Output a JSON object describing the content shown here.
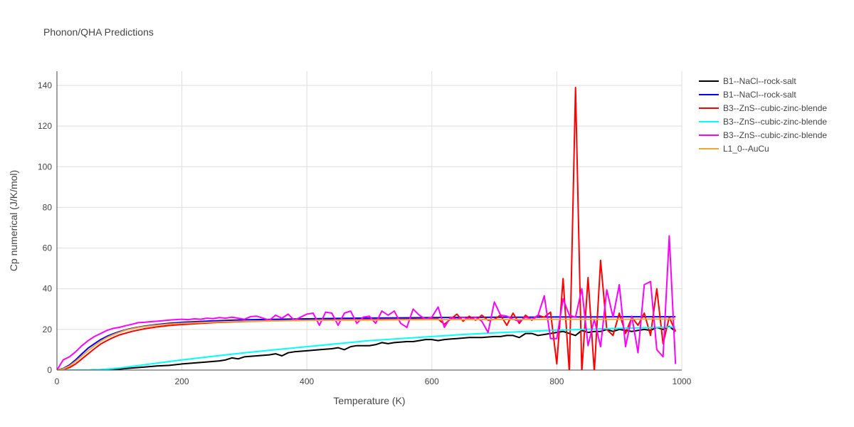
{
  "chart_data": {
    "type": "line",
    "title": "Phonon/QHA Predictions",
    "xlabel": "Temperature (K)",
    "ylabel": "Cp numerical (J/K/mol)",
    "xlim": [
      0,
      1000
    ],
    "ylim": [
      0,
      147
    ],
    "x_ticks": [
      0,
      200,
      400,
      600,
      800,
      1000
    ],
    "y_ticks": [
      0,
      20,
      40,
      60,
      80,
      100,
      120,
      140
    ],
    "grid": true,
    "legend_position": "right",
    "series": [
      {
        "name": "B1--NaCl--rock-salt",
        "color": "#000000",
        "x": [
          0,
          50,
          80,
          100,
          120,
          140,
          160,
          180,
          200,
          220,
          240,
          260,
          270,
          280,
          290,
          300,
          320,
          340,
          350,
          360,
          370,
          380,
          400,
          420,
          440,
          450,
          460,
          470,
          480,
          500,
          510,
          520,
          530,
          540,
          560,
          570,
          580,
          590,
          600,
          610,
          620,
          640,
          660,
          680,
          700,
          710,
          720,
          730,
          740,
          750,
          760,
          770,
          780,
          790,
          800,
          810,
          820,
          830,
          840,
          850,
          860,
          870,
          880,
          890,
          900,
          910,
          920,
          930,
          940,
          950,
          960,
          970,
          980,
          990
        ],
        "y": [
          0,
          0,
          0.3,
          0.5,
          1,
          1.5,
          2,
          2.3,
          3,
          3.5,
          4,
          4.5,
          5,
          6,
          5.5,
          6.5,
          7,
          7.5,
          8,
          7,
          8.5,
          9,
          9.5,
          10,
          10.5,
          11,
          10,
          11.5,
          12,
          12,
          12.5,
          13.5,
          13,
          13.5,
          14,
          14,
          14.5,
          15,
          15,
          14.5,
          15,
          15.5,
          16,
          16,
          16.5,
          16.5,
          17,
          17,
          16,
          18,
          18,
          17,
          17.5,
          18,
          18.5,
          19,
          18,
          17,
          19.5,
          18.5,
          19,
          19,
          20,
          19,
          20,
          19.5,
          19,
          19.5,
          20,
          19.5,
          21,
          20,
          21.5,
          19
        ]
      },
      {
        "name": "B1--NaCl--rock-salt",
        "color": "#0000ff",
        "x": [
          0,
          10,
          20,
          30,
          40,
          50,
          60,
          70,
          80,
          90,
          100,
          110,
          120,
          130,
          140,
          160,
          180,
          200,
          250,
          300,
          350,
          400,
          450,
          500,
          550,
          600,
          650,
          700,
          750,
          800,
          850,
          900,
          950,
          990
        ],
        "y": [
          0,
          0.8,
          2.5,
          5,
          8,
          10.8,
          13,
          15,
          16.6,
          17.8,
          18.9,
          19.8,
          20.5,
          21.1,
          21.6,
          22.4,
          23,
          23.5,
          24.2,
          24.7,
          25,
          25.2,
          25.4,
          25.6,
          25.7,
          25.8,
          25.9,
          26,
          26,
          26.1,
          26.1,
          26.2,
          26.2,
          26.2
        ]
      },
      {
        "name": "B3--ZnS--cubic-zinc-blende",
        "color": "#ff0000",
        "x": [
          0,
          10,
          20,
          30,
          40,
          50,
          60,
          70,
          80,
          90,
          100,
          120,
          140,
          160,
          180,
          200,
          250,
          300,
          350,
          400,
          450,
          500,
          550,
          600,
          610,
          620,
          630,
          640,
          650,
          660,
          670,
          680,
          690,
          700,
          710,
          720,
          730,
          740,
          750,
          760,
          770,
          780,
          790,
          800,
          810,
          820,
          830,
          840,
          850,
          860,
          870,
          880,
          890,
          900,
          910,
          920,
          930,
          940,
          950,
          960,
          970,
          980,
          990
        ],
        "y": [
          0,
          0.3,
          1.2,
          3,
          5.5,
          8,
          10.5,
          12.8,
          14.5,
          16,
          17.3,
          19,
          20.3,
          21.2,
          21.9,
          22.4,
          23.3,
          23.9,
          24.3,
          24.5,
          24.7,
          24.9,
          25,
          25.1,
          25.1,
          22.5,
          25,
          27.5,
          24,
          26.5,
          24.5,
          27,
          24.5,
          25,
          27,
          22,
          28,
          23,
          27,
          24.5,
          27,
          26,
          28.5,
          3,
          45,
          -1,
          139,
          -1,
          45.5,
          -1,
          54,
          20,
          17,
          28,
          18,
          26,
          22,
          28,
          17,
          40,
          13,
          26,
          19
        ]
      },
      {
        "name": "B3--ZnS--cubic-zinc-blende",
        "color": "#00ffff",
        "x": [
          0,
          50,
          70,
          100,
          130,
          160,
          200,
          250,
          300,
          350,
          400,
          450,
          500,
          550,
          600,
          650,
          700,
          750,
          800,
          850,
          900,
          950,
          990
        ],
        "y": [
          0,
          0,
          0.2,
          1,
          2.2,
          3.4,
          5,
          6.8,
          8.5,
          10,
          11.5,
          13,
          14.5,
          15.5,
          16.5,
          17.5,
          18.3,
          19,
          19.6,
          20.1,
          20.5,
          20.9,
          21.2
        ]
      },
      {
        "name": "B3--ZnS--cubic-zinc-blende",
        "color": "#ff00ff",
        "x": [
          0,
          10,
          20,
          30,
          40,
          50,
          60,
          70,
          80,
          90,
          100,
          110,
          120,
          130,
          140,
          150,
          160,
          170,
          180,
          190,
          200,
          210,
          220,
          230,
          240,
          250,
          260,
          270,
          280,
          290,
          300,
          310,
          320,
          330,
          340,
          350,
          360,
          370,
          380,
          390,
          400,
          410,
          420,
          430,
          440,
          450,
          460,
          470,
          480,
          490,
          500,
          510,
          520,
          530,
          540,
          550,
          560,
          570,
          580,
          590,
          600,
          610,
          620,
          630,
          640,
          650,
          660,
          670,
          680,
          690,
          700,
          710,
          720,
          730,
          740,
          750,
          760,
          770,
          780,
          790,
          800,
          810,
          820,
          830,
          840,
          850,
          860,
          870,
          880,
          890,
          900,
          910,
          920,
          930,
          940,
          950,
          960,
          970,
          980,
          990
        ],
        "y": [
          0,
          5,
          6.5,
          9,
          12,
          14.5,
          16.5,
          18,
          19.5,
          20.5,
          21,
          21.8,
          22.5,
          23.3,
          23.5,
          23.8,
          24,
          24.3,
          24.6,
          24.8,
          25,
          24.8,
          25.2,
          25,
          25.5,
          25.3,
          25.8,
          25.5,
          26,
          25.5,
          25,
          26.3,
          26.5,
          25.5,
          24.5,
          27,
          25.5,
          27.5,
          24.5,
          26,
          27.5,
          28,
          22,
          28.5,
          28,
          22,
          28,
          29,
          23,
          26,
          26.5,
          23,
          29,
          27,
          29,
          23,
          21,
          30,
          27,
          25,
          26,
          31,
          21,
          26,
          25,
          26,
          25,
          26,
          24,
          18.5,
          33.5,
          27,
          26.5,
          25,
          24,
          26,
          25,
          27,
          36.5,
          15.5,
          15.5,
          35,
          27,
          26,
          40,
          12,
          25,
          11.5,
          39.5,
          26,
          42,
          11.5,
          26.5,
          8.5,
          42,
          43.5,
          10,
          6.5,
          66,
          3
        ]
      },
      {
        "name": "L1_0--AuCu",
        "color": "#f0a830",
        "x": [
          0,
          10,
          20,
          30,
          40,
          50,
          60,
          70,
          80,
          90,
          100,
          110,
          120,
          130,
          140,
          160,
          180,
          200,
          250,
          300,
          350,
          400,
          450,
          500,
          550,
          600,
          650,
          700,
          750,
          800,
          850,
          900,
          950,
          990
        ],
        "y": [
          0,
          0.6,
          2,
          4.3,
          7,
          9.6,
          12,
          14.2,
          16,
          17.4,
          18.6,
          19.6,
          20.3,
          20.9,
          21.4,
          22.1,
          22.6,
          23,
          23.6,
          24,
          24.2,
          24.4,
          24.5,
          24.6,
          24.7,
          24.8,
          24.8,
          24.9,
          24.9,
          25,
          25,
          25,
          25.1,
          25.1
        ]
      }
    ]
  }
}
